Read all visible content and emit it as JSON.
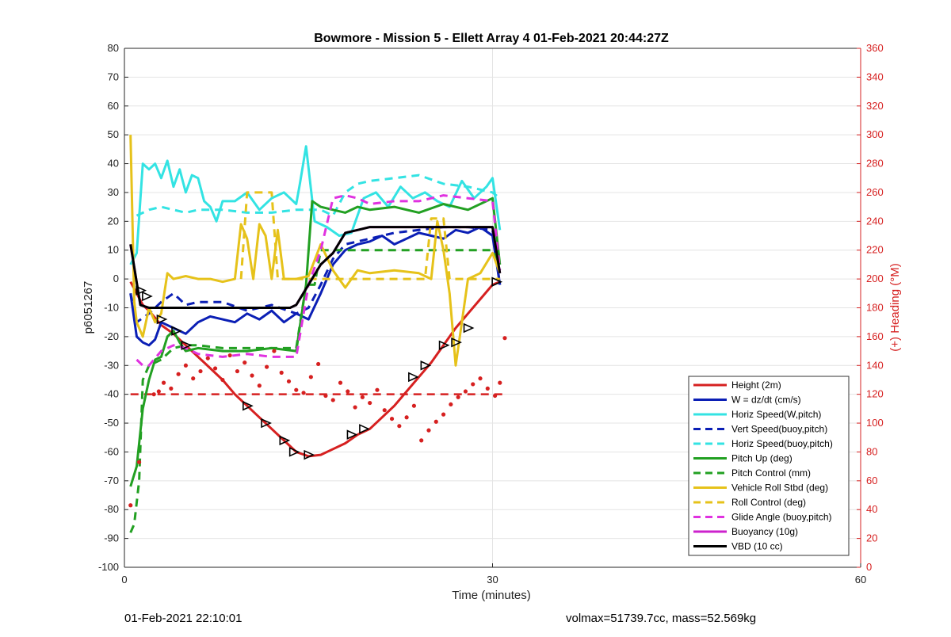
{
  "footer": {
    "timestamp": "01-Feb-2021 22:10:01",
    "stats": "volmax=51739.7cc, mass=52.569kg"
  },
  "chart_data": {
    "type": "line",
    "title": "Bowmore - Mission 5 - Ellett Array 4 01-Feb-2021 20:44:27Z",
    "xlabel": "Time (minutes)",
    "ylabel": "p6051267",
    "y2label": "(+) Heading (°M)",
    "xlim": [
      0,
      60
    ],
    "ylim": [
      -100,
      80
    ],
    "y2lim": [
      0,
      360
    ],
    "xticks": [
      0,
      30,
      60
    ],
    "yticks": [
      -100,
      -90,
      -80,
      -70,
      -60,
      -50,
      -40,
      -30,
      -20,
      -10,
      0,
      10,
      20,
      30,
      40,
      50,
      60,
      70,
      80
    ],
    "y2ticks": [
      0,
      20,
      40,
      60,
      80,
      100,
      120,
      140,
      160,
      180,
      200,
      220,
      240,
      260,
      280,
      300,
      320,
      340,
      360
    ],
    "grid": true,
    "legend_position": "bottom-right",
    "colors": {
      "red": "#d62020",
      "heading_axis": "#d62020"
    },
    "series": [
      {
        "name": "Height (2m)",
        "color": "#d62020",
        "style": "solid",
        "x": [
          0.5,
          1.0,
          1.5,
          2.0,
          3,
          4,
          5,
          6,
          7,
          8,
          9,
          10,
          11,
          12,
          13,
          14,
          15,
          16,
          17,
          18,
          19,
          20,
          21,
          22,
          23,
          24,
          25,
          26,
          27,
          28,
          29,
          30,
          30.6
        ],
        "y": [
          -1,
          -5,
          -9,
          -11,
          -16,
          -19,
          -23,
          -27,
          -31,
          -35,
          -40,
          -44,
          -48,
          -52,
          -56,
          -60,
          -61.5,
          -61,
          -59,
          -57,
          -54,
          -52,
          -48,
          -44,
          -39,
          -34,
          -29,
          -23,
          -17,
          -12,
          -7,
          -2,
          -1
        ]
      },
      {
        "name": "W = dz/dt (cm/s)",
        "color": "#0b1fb5",
        "style": "solid",
        "x": [
          0.5,
          1,
          1.5,
          2,
          2.5,
          3,
          4,
          5,
          6,
          7,
          8,
          9,
          10,
          11,
          12,
          13,
          14,
          15,
          16,
          17,
          18,
          19,
          20,
          21,
          22,
          23,
          24,
          25,
          26,
          27,
          28,
          29,
          30,
          30.6
        ],
        "y": [
          -5,
          -20,
          -22,
          -23,
          -21,
          -15,
          -17,
          -19,
          -15,
          -13,
          -14,
          -15,
          -12,
          -14,
          -11,
          -15,
          -12,
          -14,
          -5,
          5,
          10,
          12,
          13,
          15,
          12,
          14,
          16,
          15,
          14,
          17,
          16,
          18,
          15,
          -2
        ]
      },
      {
        "name": "Horiz Speed(W,pitch)",
        "color": "#33e3e3",
        "style": "solid",
        "x": [
          0.5,
          1,
          1.5,
          2,
          2.5,
          3,
          3.5,
          4,
          4.5,
          5,
          5.5,
          6,
          6.5,
          7,
          7.5,
          8,
          9,
          10,
          11,
          12,
          13,
          14,
          14.3,
          14.8,
          15.5,
          16.5,
          17.5,
          18.5,
          19.5,
          20.5,
          21.5,
          22.5,
          23.5,
          24.5,
          25.5,
          26.5,
          27.5,
          28.5,
          29.5,
          30,
          30.6
        ],
        "y": [
          5,
          9,
          40,
          38,
          40,
          35,
          41,
          32,
          38,
          30,
          36,
          35,
          27,
          25,
          20,
          27,
          27,
          30,
          24,
          28,
          30,
          26,
          33,
          46,
          20,
          18,
          15,
          16,
          28,
          30,
          25,
          32,
          28,
          30,
          27,
          25,
          34,
          28,
          32,
          35,
          17
        ]
      },
      {
        "name": "Vert Speed(buoy,pitch)",
        "color": "#0b1fb5",
        "style": "dashed",
        "x": [
          0.5,
          1,
          2,
          3,
          4,
          5,
          6,
          8,
          10,
          12,
          14,
          15,
          16,
          17,
          18,
          20,
          22,
          24,
          26,
          28,
          30,
          30.6
        ],
        "y": [
          -5,
          -15,
          -12,
          -8,
          -5,
          -9,
          -8,
          -8,
          -11,
          -9,
          -12,
          -10,
          -2,
          7,
          12,
          14,
          16,
          17,
          18,
          18,
          17,
          -2
        ]
      },
      {
        "name": "Horiz Speed(buoy,pitch)",
        "color": "#33e3e3",
        "style": "dashed",
        "x": [
          1,
          2,
          3,
          4,
          5,
          6,
          8,
          10,
          12,
          14,
          15,
          16,
          17,
          18,
          19,
          20,
          22,
          24,
          26,
          28,
          30,
          30.6
        ],
        "y": [
          22,
          24,
          25,
          24,
          23,
          24,
          24,
          23,
          23,
          24,
          24,
          24,
          22,
          30,
          33,
          34,
          35,
          36,
          33,
          32,
          30,
          28
        ]
      },
      {
        "name": "Pitch Up (deg)",
        "color": "#22a022",
        "style": "solid",
        "x": [
          0.5,
          1,
          1.5,
          2,
          2.5,
          3,
          3.5,
          4,
          4.5,
          5,
          6,
          8,
          10,
          12,
          14,
          14.8,
          15.3,
          16,
          17,
          18,
          19,
          20,
          22,
          24,
          26,
          28,
          30,
          30.6
        ],
        "y": [
          -72,
          -65,
          -45,
          -35,
          -28,
          -27,
          -20,
          -18,
          -22,
          -25,
          -24,
          -25,
          -25,
          -24,
          -25,
          -2,
          27,
          25,
          24,
          23,
          25,
          24,
          25,
          23,
          26,
          24,
          28,
          5
        ]
      },
      {
        "name": "Pitch Control (mm)",
        "color": "#22a022",
        "style": "dashed",
        "x": [
          0.5,
          0.8,
          1.2,
          1.5,
          2,
          3,
          4,
          5,
          6,
          8,
          10,
          12,
          14,
          14.8,
          15.5,
          16,
          18,
          20,
          22,
          24,
          26,
          28,
          30,
          30.6
        ],
        "y": [
          -88,
          -85,
          -70,
          -35,
          -30,
          -28,
          -24,
          -23,
          -23,
          -24,
          -24,
          -24,
          -24,
          -2,
          -2,
          10,
          10,
          10,
          10,
          10,
          10,
          10,
          10,
          5
        ]
      },
      {
        "name": "Vehicle Roll Stbd (deg)",
        "color": "#e6c21a",
        "style": "solid",
        "x": [
          0.5,
          0.8,
          1,
          1.5,
          2,
          2.5,
          3,
          3.5,
          4,
          5,
          6,
          7,
          8,
          9,
          9.5,
          10,
          10.5,
          11,
          11.5,
          12,
          12.5,
          13,
          14,
          15,
          16,
          17,
          18,
          19,
          20,
          22,
          24,
          25,
          25.5,
          26,
          26.5,
          27,
          27.5,
          28,
          29,
          30,
          30.6
        ],
        "y": [
          50,
          -8,
          -15,
          -20,
          -10,
          -15,
          -12,
          2,
          0,
          1,
          0,
          0,
          -1,
          0,
          19,
          14,
          0,
          19,
          15,
          0,
          17,
          0,
          0,
          1,
          12,
          3,
          -3,
          3,
          2,
          3,
          2,
          0,
          20,
          10,
          -5,
          -30,
          -15,
          0,
          2,
          9,
          2
        ]
      },
      {
        "name": "Roll Control (deg)",
        "color": "#e6c21a",
        "style": "dashed",
        "x": [
          9.5,
          10,
          12,
          12.5,
          14,
          15,
          16,
          18,
          20,
          22,
          24,
          24.5,
          25,
          26,
          26.5,
          27,
          28,
          30,
          30.6
        ],
        "y": [
          0,
          30,
          30,
          0,
          0,
          0,
          0,
          0,
          0,
          0,
          0,
          0,
          21,
          21,
          0,
          0,
          0,
          0,
          0
        ]
      },
      {
        "name": "Glide Angle (buoy,pitch)",
        "color": "#e032e0",
        "style": "dashed",
        "x": [
          1,
          1.5,
          2,
          3,
          4,
          5,
          6,
          8,
          10,
          12,
          14,
          15,
          16,
          17,
          18,
          19,
          20,
          22,
          24,
          26,
          28,
          30,
          30.6
        ],
        "y": [
          -28,
          -30,
          -30,
          -25,
          -23,
          -24,
          -26,
          -27,
          -26,
          -27,
          -27,
          -2,
          10,
          28,
          29,
          28,
          26,
          27,
          27,
          29,
          28,
          27,
          3
        ]
      },
      {
        "name": "Buoyancy (10g)",
        "color": "#cc22cc",
        "style": "solid",
        "x": [
          0.5,
          1.3,
          2,
          5,
          10,
          13.5,
          14,
          15,
          16,
          17,
          18,
          19,
          20,
          25,
          28,
          30,
          30.6
        ],
        "y": [
          12,
          -9,
          -10,
          -10,
          -10,
          -10,
          -9,
          -2,
          5,
          9,
          16,
          17,
          18,
          18,
          18,
          18,
          2
        ]
      },
      {
        "name": "VBD (10 cc)",
        "color": "#000000",
        "style": "solid",
        "x": [
          0.5,
          1.3,
          2,
          5,
          10,
          13.5,
          14,
          15,
          16,
          17,
          18,
          19,
          20,
          25,
          28,
          30,
          30.6
        ],
        "y": [
          12,
          -9,
          -10,
          -10,
          -10,
          -10,
          -9,
          -2,
          5,
          9,
          16,
          17,
          18,
          18,
          18,
          18,
          2
        ]
      }
    ],
    "heading": {
      "mean": 120,
      "x": [
        0.5,
        1.2,
        2.4,
        2.8,
        3.2,
        3.8,
        4.4,
        5.0,
        5.6,
        6.2,
        6.8,
        7.4,
        8.0,
        8.6,
        9.2,
        9.8,
        10.4,
        11.0,
        11.6,
        12.2,
        12.8,
        13.4,
        14.0,
        14.6,
        15.2,
        15.8,
        16.4,
        17.0,
        17.6,
        18.2,
        18.8,
        19.4,
        20.0,
        20.6,
        21.2,
        21.8,
        22.4,
        23.0,
        23.6,
        24.2,
        24.8,
        25.4,
        26.0,
        26.6,
        27.2,
        27.8,
        28.4,
        29.0,
        29.6,
        30.2,
        30.6,
        31
      ],
      "y": [
        43,
        73,
        120,
        122,
        128,
        124,
        134,
        140,
        131,
        136,
        145,
        138,
        130,
        147,
        136,
        142,
        133,
        126,
        139,
        150,
        135,
        129,
        123,
        121,
        132,
        141,
        119,
        116,
        128,
        122,
        111,
        118,
        114,
        123,
        109,
        103,
        98,
        104,
        112,
        88,
        95,
        101,
        106,
        113,
        118,
        122,
        127,
        131,
        124,
        119,
        128,
        159
      ]
    },
    "markers": {
      "x": [
        1.3,
        1.8,
        3.0,
        4.2,
        5.0,
        10,
        11.5,
        13,
        13.8,
        15,
        18.5,
        19.5,
        23.5,
        24.5,
        26,
        27,
        28,
        30.3
      ],
      "y": [
        -4,
        -6,
        -14,
        -18,
        -23,
        -44,
        -50,
        -56,
        -60,
        -61,
        -54,
        -52,
        -34,
        -30,
        -23,
        -22,
        -17,
        -1
      ]
    }
  }
}
